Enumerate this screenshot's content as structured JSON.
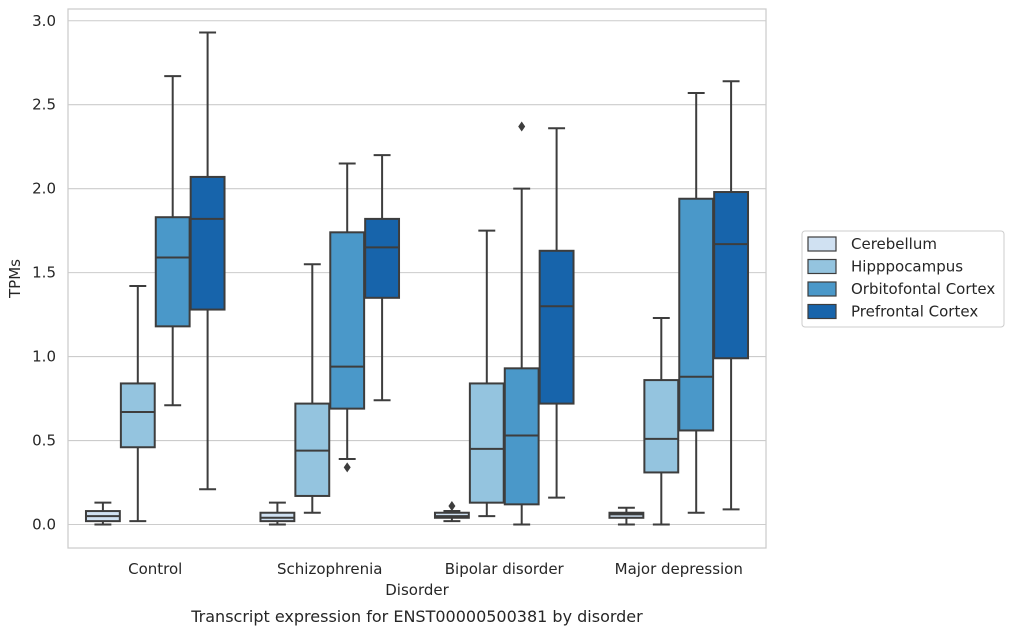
{
  "chart_data": {
    "type": "box",
    "caption": "Transcript expression for ENST00000500381 by disorder",
    "xlabel": "Disorder",
    "ylabel": "TPMs",
    "ylim": [
      -0.14,
      3.07
    ],
    "yticks": [
      "0.0",
      "0.5",
      "1.0",
      "1.5",
      "2.0",
      "2.5",
      "3.0"
    ],
    "grid": true,
    "legend_position": "right",
    "categories": [
      "Control",
      "Schizophrenia",
      "Bipolar disorder",
      "Major depression"
    ],
    "series": [
      {
        "name": "Cerebellum",
        "color": "#d0e1f2",
        "boxes": [
          {
            "min": 0.0,
            "q1": 0.02,
            "median": 0.05,
            "q3": 0.08,
            "max": 0.13,
            "outliers": []
          },
          {
            "min": 0.0,
            "q1": 0.02,
            "median": 0.04,
            "q3": 0.07,
            "max": 0.13,
            "outliers": []
          },
          {
            "min": 0.02,
            "q1": 0.04,
            "median": 0.05,
            "q3": 0.07,
            "max": 0.08,
            "outliers": [
              0.11
            ]
          },
          {
            "min": 0.0,
            "q1": 0.04,
            "median": 0.06,
            "q3": 0.07,
            "max": 0.1,
            "outliers": []
          }
        ]
      },
      {
        "name": "Hipppocampus",
        "color": "#94c4df",
        "boxes": [
          {
            "min": 0.02,
            "q1": 0.46,
            "median": 0.67,
            "q3": 0.84,
            "max": 1.42,
            "outliers": []
          },
          {
            "min": 0.07,
            "q1": 0.17,
            "median": 0.44,
            "q3": 0.72,
            "max": 1.55,
            "outliers": []
          },
          {
            "min": 0.05,
            "q1": 0.13,
            "median": 0.45,
            "q3": 0.84,
            "max": 1.75,
            "outliers": []
          },
          {
            "min": 0.0,
            "q1": 0.31,
            "median": 0.51,
            "q3": 0.86,
            "max": 1.23,
            "outliers": []
          }
        ]
      },
      {
        "name": "Orbitofontal Cortex",
        "color": "#4a98c9",
        "boxes": [
          {
            "min": 0.71,
            "q1": 1.18,
            "median": 1.59,
            "q3": 1.83,
            "max": 2.67,
            "outliers": []
          },
          {
            "min": 0.39,
            "q1": 0.69,
            "median": 0.94,
            "q3": 1.74,
            "max": 2.15,
            "outliers": [
              0.34
            ]
          },
          {
            "min": 0.0,
            "q1": 0.12,
            "median": 0.53,
            "q3": 0.93,
            "max": 2.0,
            "outliers": [
              2.37
            ]
          },
          {
            "min": 0.07,
            "q1": 0.56,
            "median": 0.88,
            "q3": 1.94,
            "max": 2.57,
            "outliers": []
          }
        ]
      },
      {
        "name": "Prefrontal Cortex",
        "color": "#1764ab",
        "boxes": [
          {
            "min": 0.21,
            "q1": 1.28,
            "median": 1.82,
            "q3": 2.07,
            "max": 2.93,
            "outliers": []
          },
          {
            "min": 0.74,
            "q1": 1.35,
            "median": 1.65,
            "q3": 1.82,
            "max": 2.2,
            "outliers": []
          },
          {
            "min": 0.16,
            "q1": 0.72,
            "median": 1.3,
            "q3": 1.63,
            "max": 2.36,
            "outliers": []
          },
          {
            "min": 0.09,
            "q1": 0.99,
            "median": 1.67,
            "q3": 1.98,
            "max": 2.64,
            "outliers": []
          }
        ]
      }
    ]
  }
}
